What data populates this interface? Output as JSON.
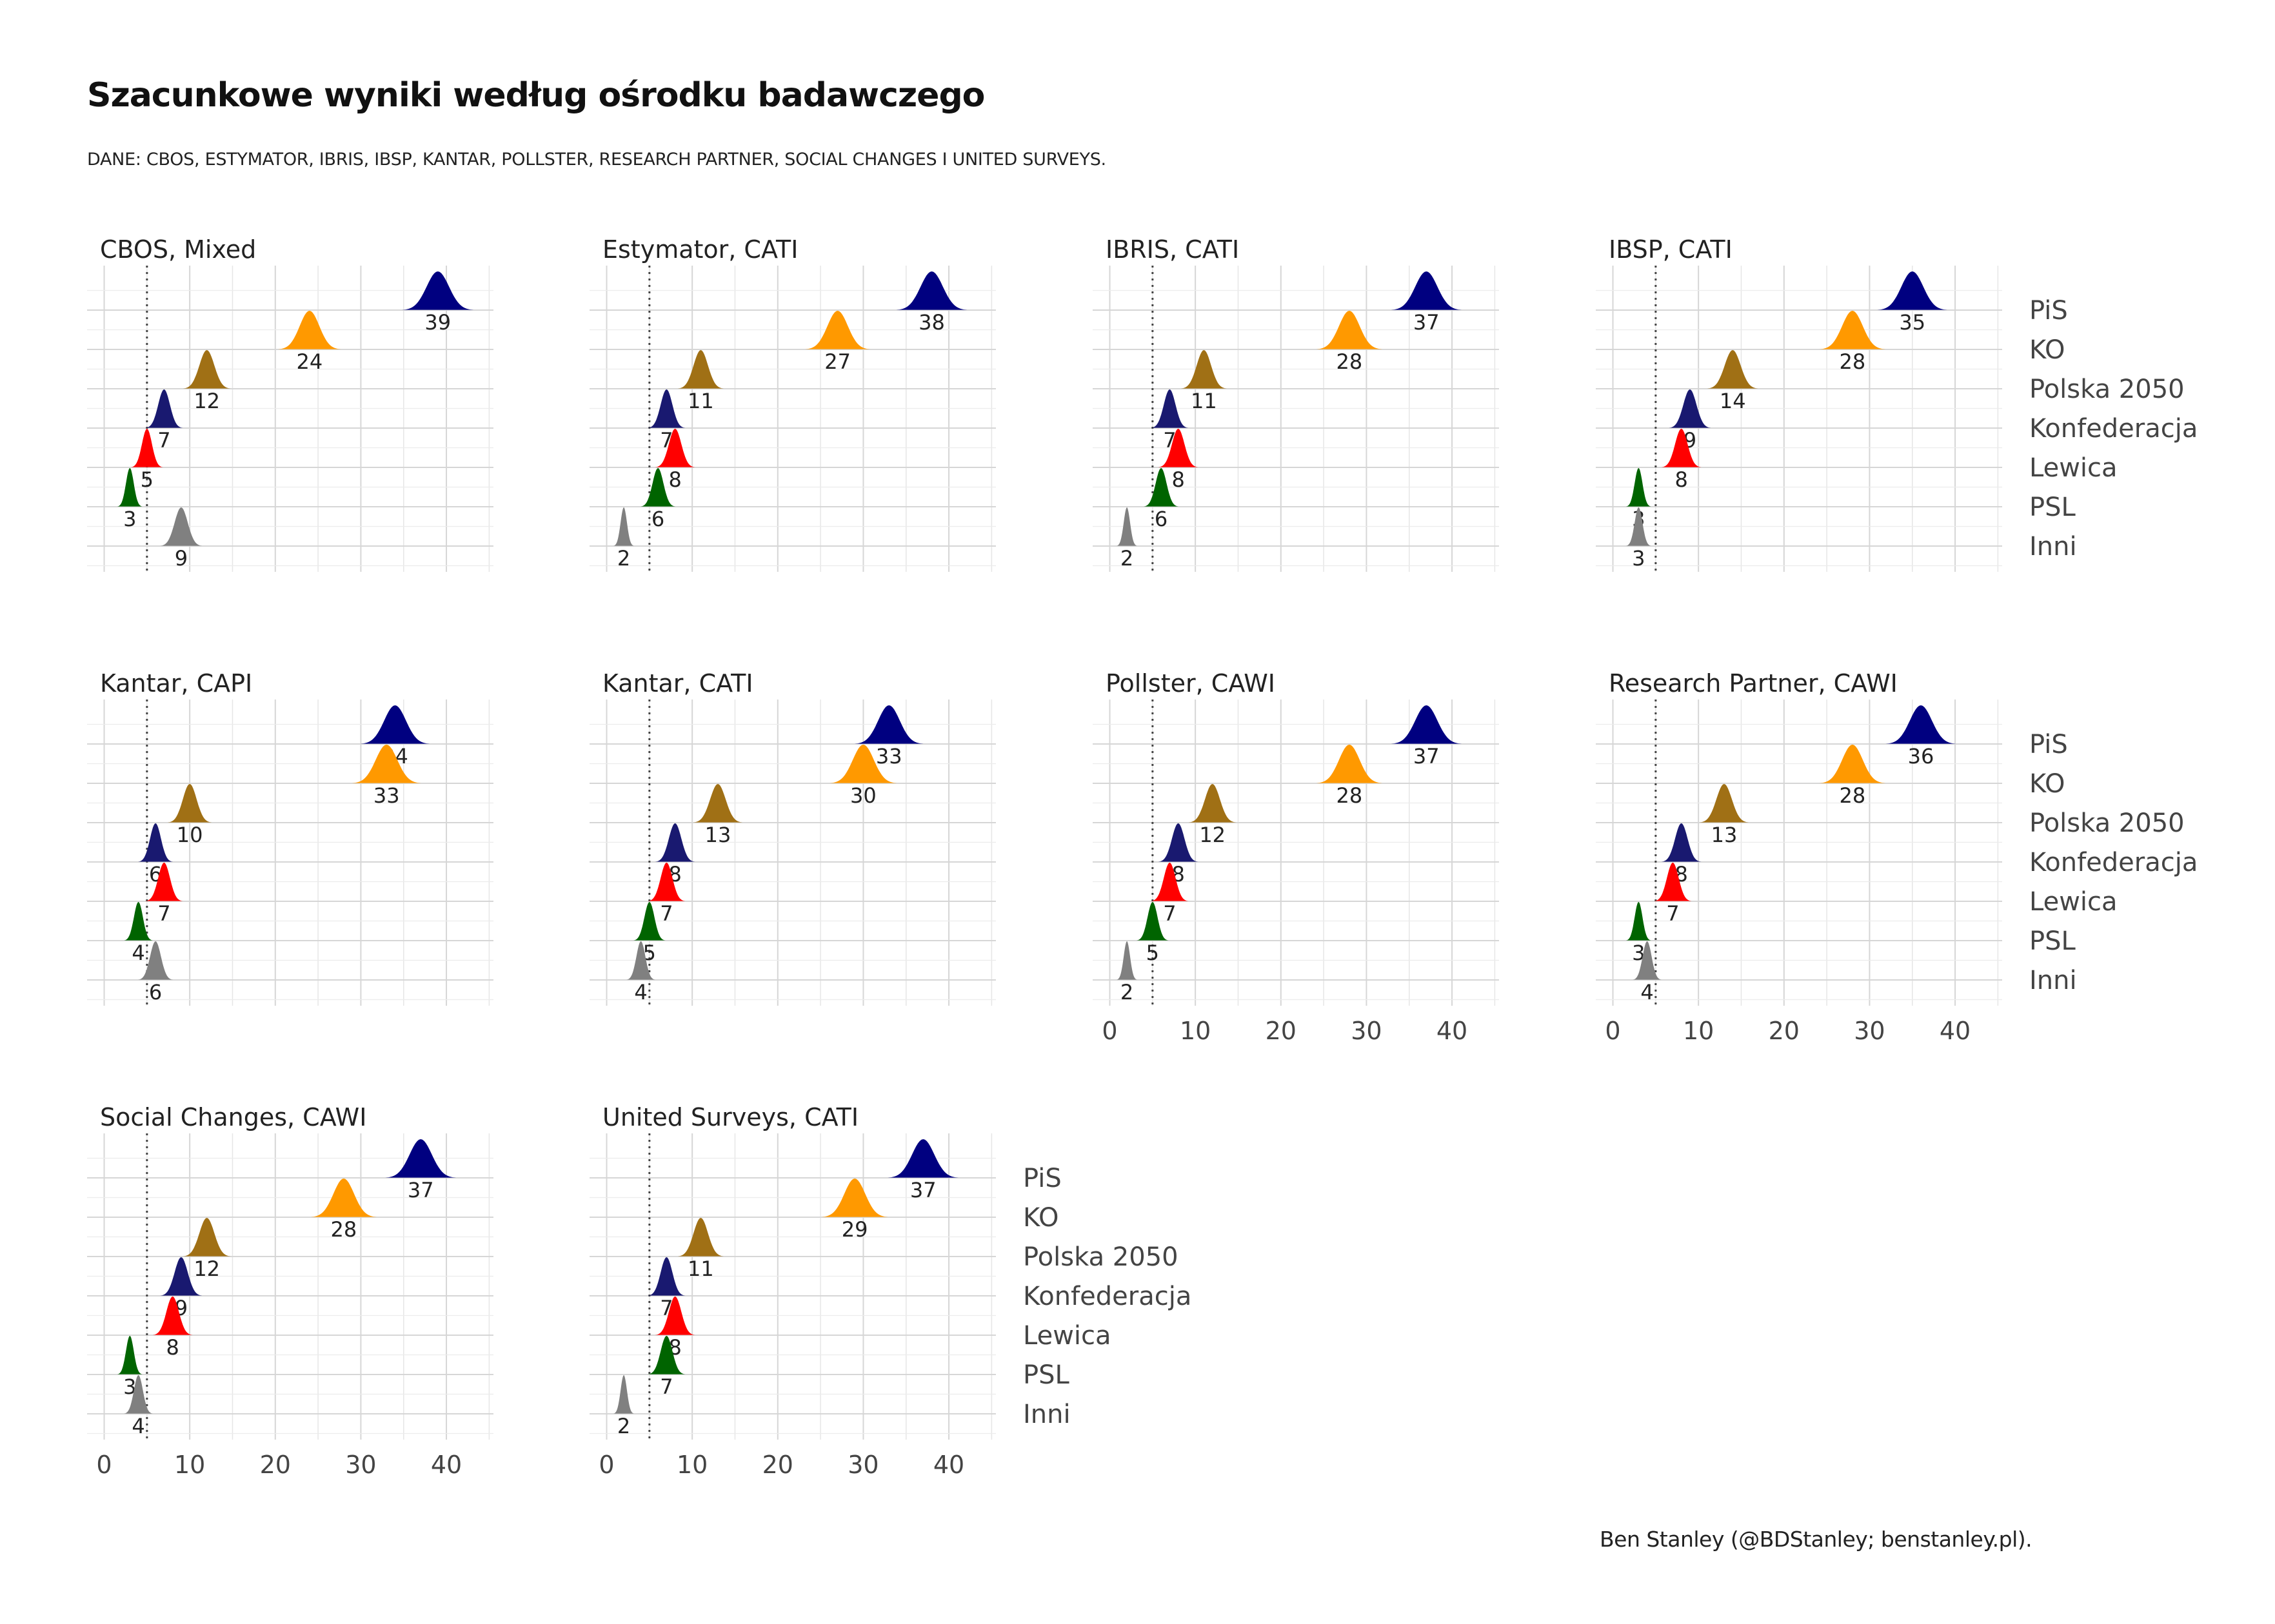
{
  "title": "Szacunkowe wyniki według ośrodku badawczego",
  "subtitle": "DANE: CBOS, ESTYMATOR, IBRIS, IBSP, KANTAR, POLLSTER, RESEARCH PARTNER, SOCIAL CHANGES I UNITED SURVEYS.",
  "caption": "Ben Stanley (@BDStanley; benstanley.pl).",
  "chart_data": {
    "type": "ridgeline",
    "parties": [
      "PiS",
      "KO",
      "Polska 2050",
      "Konfederacja",
      "Lewica",
      "PSL",
      "Inni"
    ],
    "colors": {
      "PiS": "#000080",
      "KO": "#FF9900",
      "Polska 2050": "#A07015",
      "Konfederacja": "#191970",
      "Lewica": "#FF0000",
      "PSL": "#006400",
      "Inni": "#808080"
    },
    "x_ticks": [
      0,
      10,
      20,
      30,
      40
    ],
    "xlim": [
      -2,
      45.5
    ],
    "threshold": 5,
    "facets": [
      {
        "name": "CBOS, Mixed",
        "values": [
          39,
          24,
          12,
          7,
          5,
          3,
          9
        ]
      },
      {
        "name": "Estymator, CATI",
        "values": [
          38,
          27,
          11,
          7,
          8,
          6,
          2
        ]
      },
      {
        "name": "IBRIS, CATI",
        "values": [
          37,
          28,
          11,
          7,
          8,
          6,
          2
        ]
      },
      {
        "name": "IBSP, CATI",
        "values": [
          35,
          28,
          14,
          9,
          8,
          3,
          3
        ]
      },
      {
        "name": "Kantar, CAPI",
        "values": [
          34,
          33,
          10,
          6,
          7,
          4,
          6
        ]
      },
      {
        "name": "Kantar, CATI",
        "values": [
          33,
          30,
          13,
          8,
          7,
          5,
          4
        ]
      },
      {
        "name": "Pollster, CAWI",
        "values": [
          37,
          28,
          12,
          8,
          7,
          5,
          2
        ]
      },
      {
        "name": "Research Partner, CAWI",
        "values": [
          36,
          28,
          13,
          8,
          7,
          3,
          4
        ]
      },
      {
        "name": "Social Changes, CAWI",
        "values": [
          37,
          28,
          12,
          9,
          8,
          3,
          4
        ]
      },
      {
        "name": "United Surveys, CATI",
        "values": [
          37,
          29,
          11,
          7,
          8,
          7,
          2
        ]
      }
    ]
  }
}
